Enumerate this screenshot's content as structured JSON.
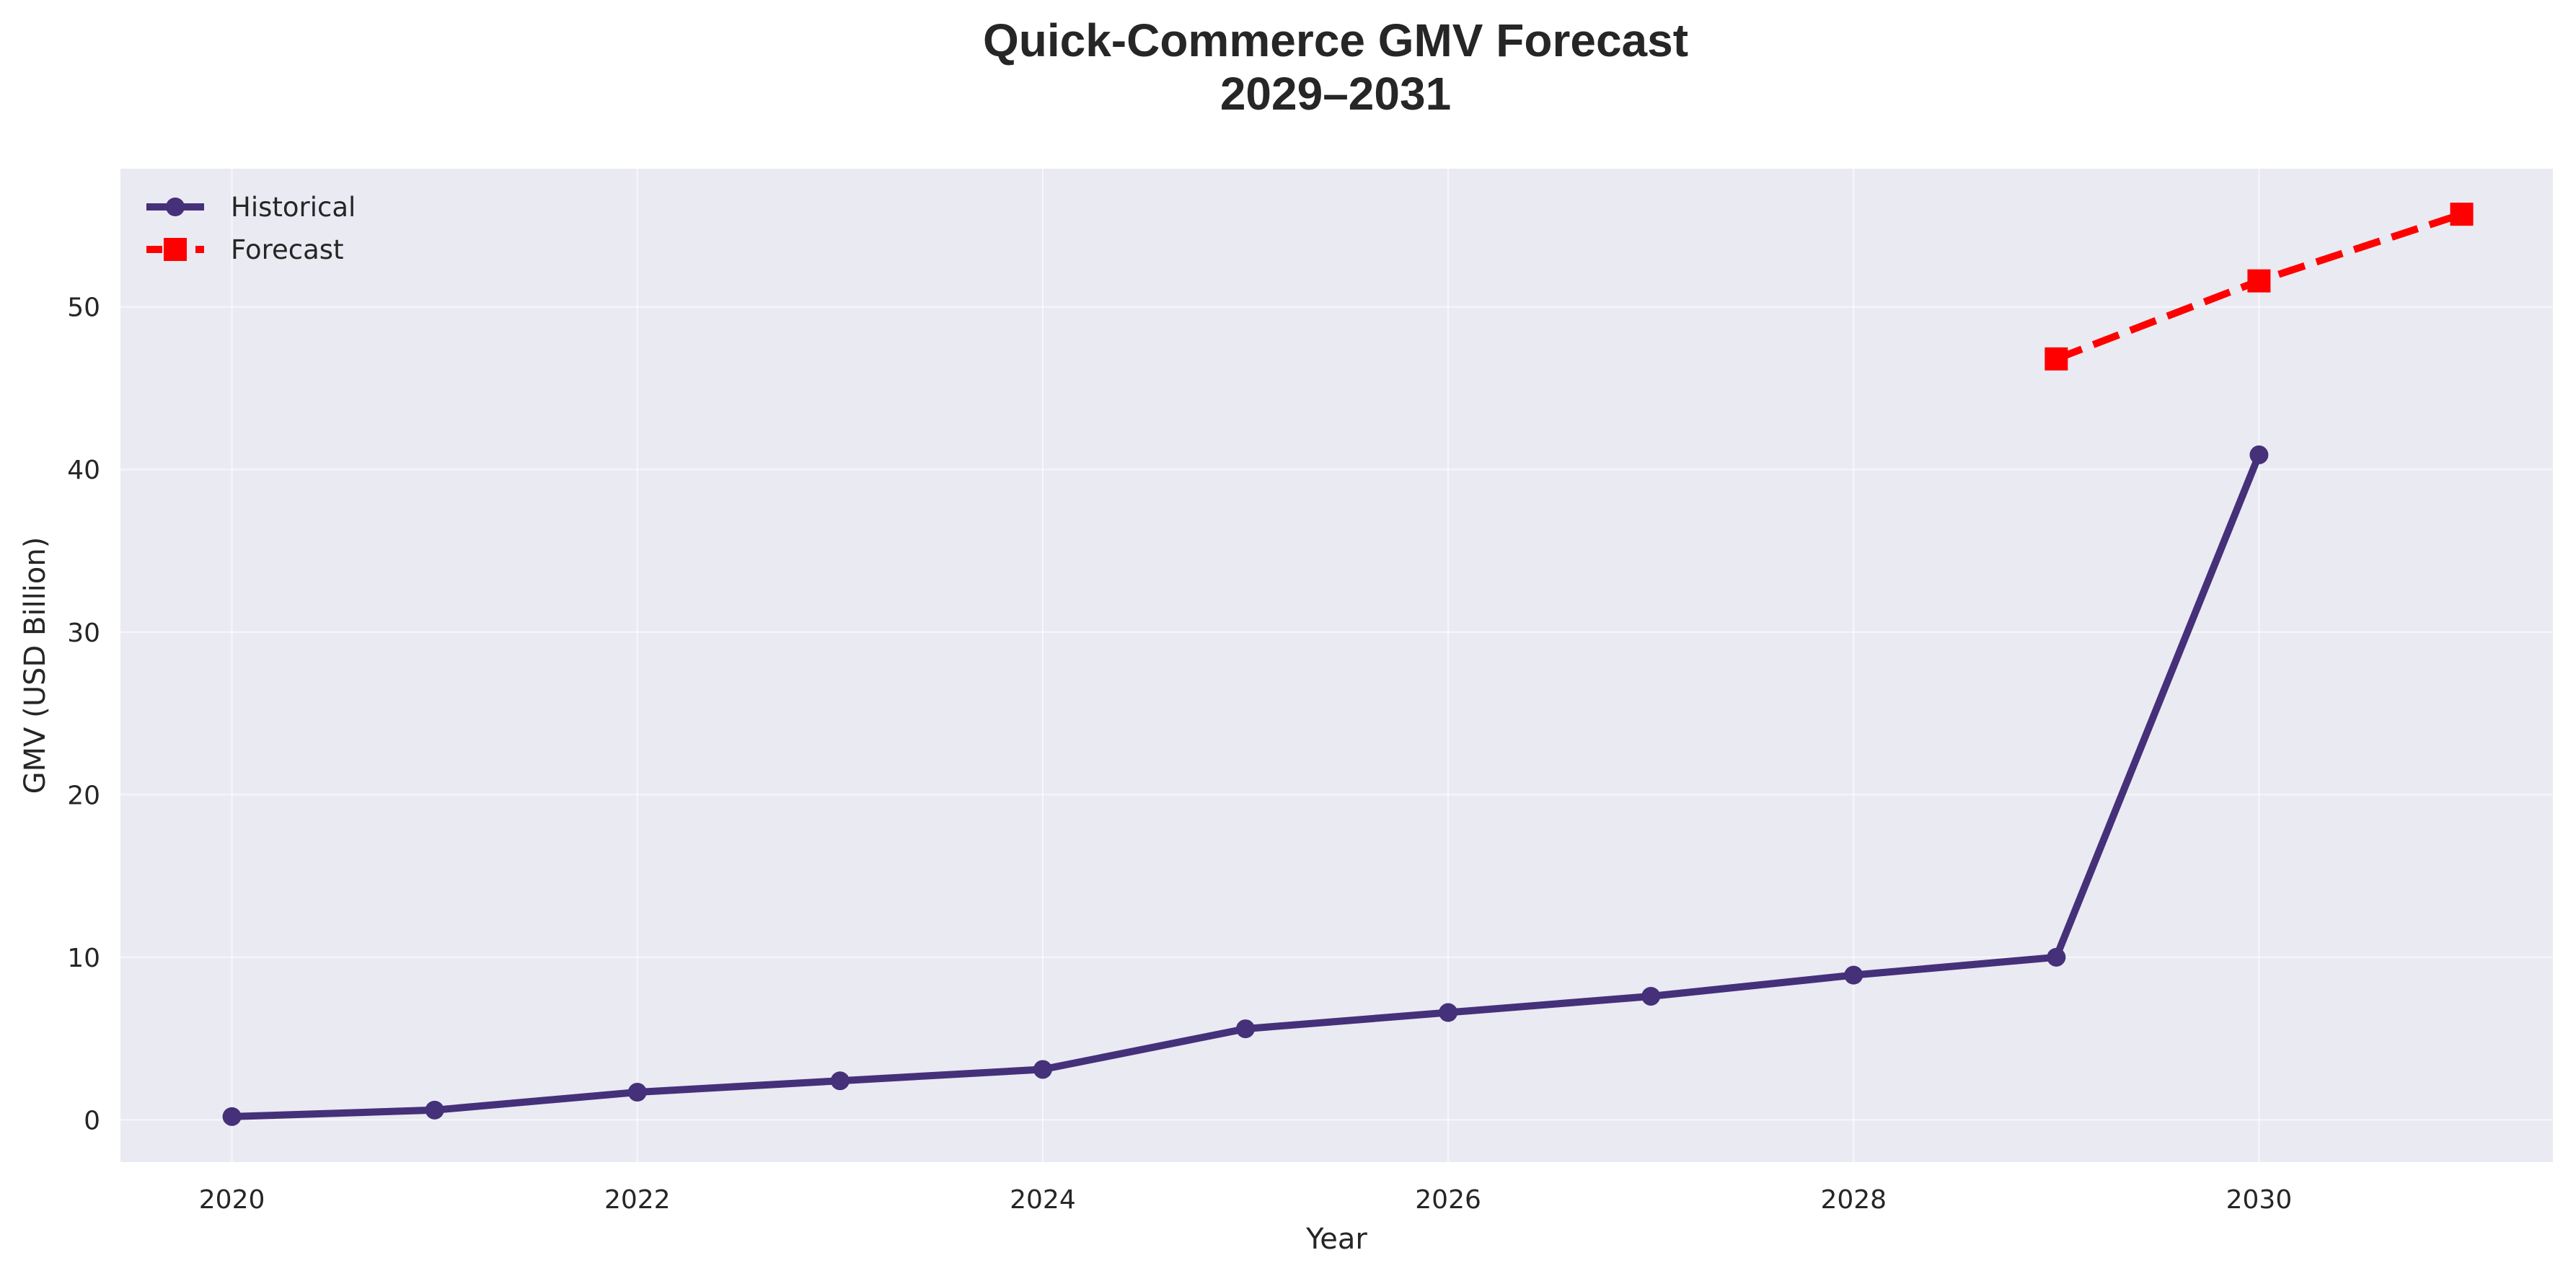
{
  "chart_data": {
    "type": "line",
    "title_lines": [
      "Quick-Commerce GMV Forecast",
      "2029–2031"
    ],
    "xlabel": "Year",
    "ylabel": "GMV (USD Billion)",
    "xlim": [
      2019.45,
      2031.45
    ],
    "ylim": [
      -2.6,
      58.5
    ],
    "x_ticks": [
      2020,
      2022,
      2024,
      2026,
      2028,
      2030
    ],
    "y_ticks": [
      0,
      10,
      20,
      30,
      40,
      50
    ],
    "grid": true,
    "background_color": "#eaeaf2",
    "grid_color": "#ffffff",
    "legend_position": "top-left",
    "series": [
      {
        "name": "Historical",
        "color": "#45307a",
        "line_style": "solid",
        "marker": "circle",
        "x": [
          2020,
          2021,
          2022,
          2023,
          2024,
          2025,
          2026,
          2027,
          2028,
          2029,
          2030
        ],
        "values": [
          0.2,
          0.6,
          1.7,
          2.4,
          3.1,
          5.6,
          6.6,
          7.6,
          8.9,
          10.0,
          40.9
        ]
      },
      {
        "name": "Forecast",
        "color": "#ff0000",
        "line_style": "dashed",
        "marker": "square",
        "x": [
          2029,
          2030,
          2031
        ],
        "values": [
          46.8,
          51.6,
          55.7
        ]
      }
    ]
  }
}
